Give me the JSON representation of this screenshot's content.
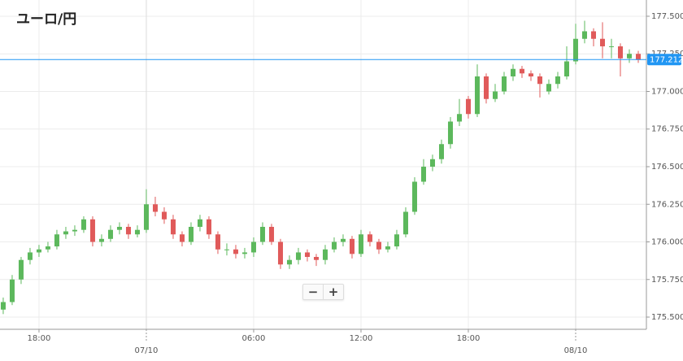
{
  "chart_data": {
    "type": "candlestick",
    "title": "ユーロ/円",
    "open": [
      175.55,
      175.6,
      175.75,
      175.88,
      175.93,
      175.95,
      175.97,
      176.05,
      176.07,
      176.08,
      176.15,
      176.0,
      176.02,
      176.08,
      176.1,
      176.05,
      176.08,
      176.25,
      176.2,
      176.15,
      176.05,
      176.0,
      176.1,
      176.15,
      176.05,
      175.95,
      175.95,
      175.92,
      175.93,
      176.0,
      176.1,
      176.0,
      175.85,
      175.88,
      175.93,
      175.9,
      175.88,
      175.95,
      176.0,
      176.02,
      175.92,
      176.05,
      176.0,
      175.95,
      175.97,
      176.05,
      176.2,
      176.4,
      176.5,
      176.55,
      176.65,
      176.8,
      176.95,
      176.85,
      177.1,
      176.95,
      177.0,
      177.1,
      177.15,
      177.12,
      177.1,
      177.0,
      177.05,
      177.1,
      177.2,
      177.35,
      177.4,
      177.35,
      177.3,
      177.3,
      177.22,
      177.25
    ],
    "high": [
      175.63,
      175.78,
      175.9,
      175.96,
      175.98,
      176.0,
      176.08,
      176.1,
      176.11,
      176.17,
      176.17,
      176.05,
      176.11,
      176.13,
      176.12,
      176.11,
      176.35,
      176.3,
      176.23,
      176.18,
      176.07,
      176.13,
      176.18,
      176.17,
      176.07,
      175.99,
      175.98,
      175.96,
      176.03,
      176.13,
      176.12,
      176.02,
      175.91,
      175.96,
      175.95,
      175.92,
      175.98,
      176.03,
      176.05,
      176.04,
      176.08,
      176.07,
      176.02,
      176.0,
      176.08,
      176.23,
      176.43,
      176.55,
      176.58,
      176.68,
      176.83,
      176.95,
      176.97,
      177.18,
      177.12,
      177.05,
      177.13,
      177.18,
      177.17,
      177.14,
      177.12,
      177.08,
      177.13,
      177.3,
      177.45,
      177.47,
      177.42,
      177.46,
      177.35,
      177.32,
      177.28,
      177.27
    ],
    "low": [
      175.52,
      175.58,
      175.72,
      175.85,
      175.9,
      175.93,
      175.95,
      176.02,
      176.04,
      176.06,
      175.97,
      175.97,
      176.0,
      176.05,
      176.02,
      176.03,
      176.06,
      176.17,
      176.12,
      176.02,
      175.97,
      175.98,
      176.07,
      176.02,
      175.92,
      175.91,
      175.89,
      175.89,
      175.9,
      175.98,
      175.98,
      175.82,
      175.82,
      175.85,
      175.87,
      175.84,
      175.85,
      175.93,
      175.97,
      175.89,
      175.9,
      175.97,
      175.92,
      175.93,
      175.95,
      176.03,
      176.18,
      176.38,
      176.47,
      176.52,
      176.62,
      176.77,
      176.82,
      176.83,
      176.92,
      176.93,
      176.98,
      177.07,
      177.09,
      177.07,
      176.96,
      176.98,
      177.02,
      177.08,
      177.18,
      177.32,
      177.3,
      177.22,
      177.22,
      177.1,
      177.19,
      177.19
    ],
    "close": [
      175.6,
      175.75,
      175.88,
      175.93,
      175.95,
      175.97,
      176.05,
      176.07,
      176.08,
      176.15,
      176.0,
      176.02,
      176.08,
      176.1,
      176.05,
      176.08,
      176.25,
      176.2,
      176.15,
      176.05,
      176.0,
      176.1,
      176.15,
      176.05,
      175.95,
      175.95,
      175.92,
      175.93,
      176.0,
      176.1,
      176.0,
      175.85,
      175.88,
      175.93,
      175.9,
      175.88,
      175.95,
      176.0,
      176.02,
      175.92,
      176.05,
      176.0,
      175.95,
      175.97,
      176.05,
      176.2,
      176.4,
      176.5,
      176.55,
      176.65,
      176.8,
      176.85,
      176.85,
      177.1,
      176.95,
      177.0,
      177.1,
      177.15,
      177.12,
      177.1,
      177.05,
      177.05,
      177.1,
      177.2,
      177.35,
      177.4,
      177.35,
      177.3,
      177.3,
      177.22,
      177.25,
      177.21
    ],
    "up_color": "#5cb85c",
    "down_color": "#e05a5a",
    "xlim": [
      -0.36,
      71.91
    ],
    "xticks": [
      {
        "value": 4,
        "label": "18:00"
      },
      {
        "value": 16,
        "label": "07/10"
      },
      {
        "value": 28,
        "label": "06:00"
      },
      {
        "value": 40,
        "label": "12:00"
      },
      {
        "value": 52,
        "label": "18:00"
      },
      {
        "value": 64,
        "label": "08/10"
      }
    ],
    "ylim": [
      175.419,
      177.608
    ],
    "yticks": [
      {
        "value": 175.5,
        "label": "175.500"
      },
      {
        "value": 175.75,
        "label": "175.750"
      },
      {
        "value": 176,
        "label": "176.000"
      },
      {
        "value": 176.25,
        "label": "176.250"
      },
      {
        "value": 176.5,
        "label": "176.500"
      },
      {
        "value": 176.75,
        "label": "176.750"
      },
      {
        "value": 177,
        "label": "177.000"
      },
      {
        "value": 177.25,
        "label": "177.250"
      },
      {
        "value": 177.5,
        "label": "177.500"
      }
    ],
    "current_price": {
      "value": 177.212,
      "label": "177.212"
    },
    "current_price_color": "#2196f3",
    "grid": true
  },
  "controls": {
    "zoom_out": "−",
    "zoom_in": "+"
  }
}
